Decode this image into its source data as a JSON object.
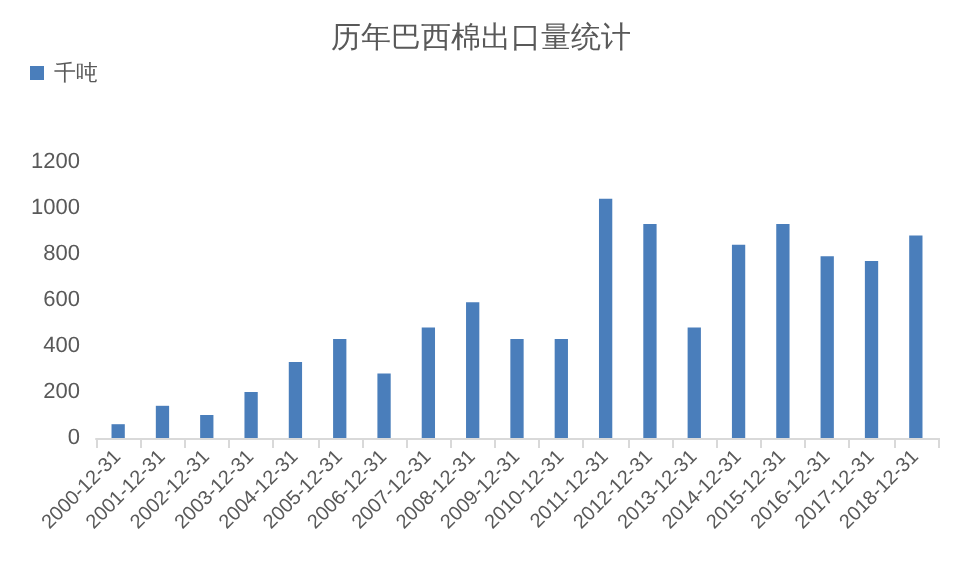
{
  "chart_data": {
    "type": "bar",
    "title": "历年巴西棉出口量统计",
    "categories": [
      "2000-12-31",
      "2001-12-31",
      "2002-12-31",
      "2003-12-31",
      "2004-12-31",
      "2005-12-31",
      "2006-12-31",
      "2007-12-31",
      "2008-12-31",
      "2009-12-31",
      "2010-12-31",
      "2011-12-31",
      "2012-12-31",
      "2013-12-31",
      "2014-12-31",
      "2015-12-31",
      "2016-12-31",
      "2017-12-31",
      "2018-12-31"
    ],
    "series": [
      {
        "name": "千吨",
        "color": "#4a7ebb",
        "values": [
          60,
          140,
          100,
          200,
          330,
          430,
          280,
          480,
          590,
          430,
          430,
          1040,
          930,
          480,
          840,
          930,
          790,
          770,
          880
        ]
      }
    ],
    "ylim": [
      0,
      1200
    ],
    "yticks": [
      0,
      200,
      400,
      600,
      800,
      1000,
      1200
    ],
    "grid": false,
    "legend": "top left"
  }
}
